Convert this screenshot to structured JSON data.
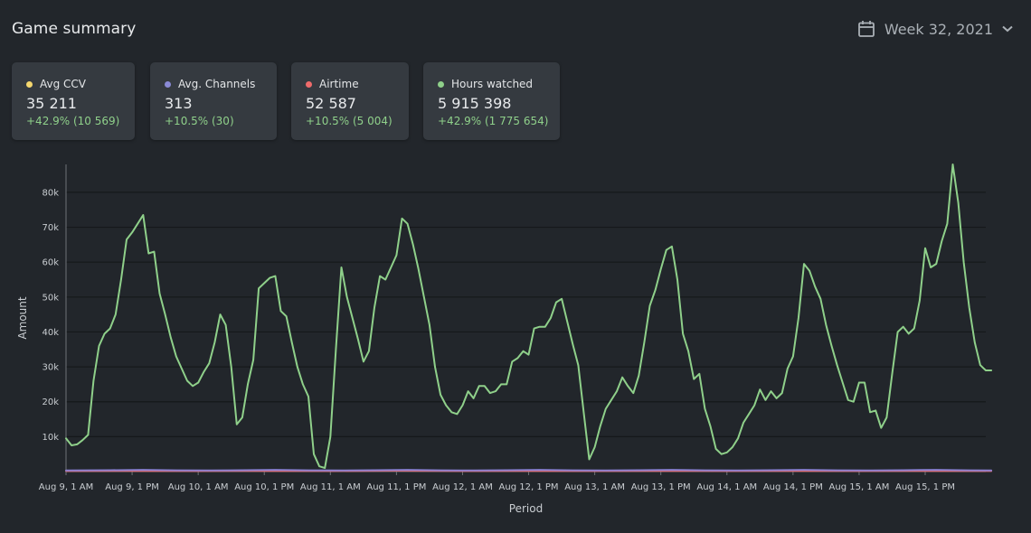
{
  "header": {
    "title": "Game summary",
    "week_label": "Week 32, 2021",
    "calendar_icon": "calendar-icon",
    "chevron_icon": "chevron-down-icon"
  },
  "cards": [
    {
      "label": "Avg CCV",
      "value": "35 211",
      "change": "+42.9% (10 569)",
      "color": "#f5d76e"
    },
    {
      "label": "Avg. Channels",
      "value": "313",
      "change": "+10.5% (30)",
      "color": "#8a8ad6"
    },
    {
      "label": "Airtime",
      "value": "52 587",
      "change": "+10.5% (5 004)",
      "color": "#ef6b6b"
    },
    {
      "label": "Hours watched",
      "value": "5 915 398",
      "change": "+42.9% (1 775 654)",
      "color": "#8fd08a"
    }
  ],
  "chart_data": {
    "type": "line",
    "xlabel": "Period",
    "ylabel": "Amount",
    "ylim": [
      0,
      88000
    ],
    "yticks": [
      "10k",
      "20k",
      "30k",
      "40k",
      "50k",
      "60k",
      "70k",
      "80k"
    ],
    "ytick_values": [
      10000,
      20000,
      30000,
      40000,
      50000,
      60000,
      70000,
      80000
    ],
    "xticks": [
      "Aug 9, 1 AM",
      "Aug 9, 1 PM",
      "Aug 10, 1 AM",
      "Aug 10, 1 PM",
      "Aug 11, 1 AM",
      "Aug 11, 1 PM",
      "Aug 12, 1 AM",
      "Aug 12, 1 PM",
      "Aug 13, 1 AM",
      "Aug 13, 1 PM",
      "Aug 14, 1 AM",
      "Aug 14, 1 PM",
      "Aug 15, 1 AM",
      "Aug 15, 1 PM"
    ],
    "xtick_hours": [
      0,
      12,
      24,
      36,
      48,
      60,
      72,
      84,
      96,
      108,
      120,
      132,
      144,
      156
    ],
    "xlim_hours": [
      0,
      167
    ],
    "grid": true,
    "series": [
      {
        "color": "#8fd08a",
        "points": [
          [
            0,
            9500
          ],
          [
            1,
            7500
          ],
          [
            2,
            7800
          ],
          [
            3,
            9000
          ],
          [
            4,
            10500
          ],
          [
            5,
            26000
          ],
          [
            6,
            36000
          ],
          [
            7,
            39500
          ],
          [
            8,
            41000
          ],
          [
            9,
            45000
          ],
          [
            10,
            55000
          ],
          [
            11,
            66500
          ],
          [
            12,
            68500
          ],
          [
            13,
            71000
          ],
          [
            14,
            73500
          ],
          [
            15,
            62500
          ],
          [
            16,
            63000
          ],
          [
            17,
            51000
          ],
          [
            18,
            45000
          ],
          [
            19,
            38500
          ],
          [
            20,
            33000
          ],
          [
            21,
            29500
          ],
          [
            22,
            26000
          ],
          [
            23,
            24500
          ],
          [
            24,
            25500
          ],
          [
            25,
            28500
          ],
          [
            26,
            31000
          ],
          [
            27,
            37000
          ],
          [
            28,
            45000
          ],
          [
            29,
            42000
          ],
          [
            30,
            30000
          ],
          [
            31,
            13500
          ],
          [
            32,
            15500
          ],
          [
            33,
            25000
          ],
          [
            34,
            32000
          ],
          [
            35,
            52500
          ],
          [
            36,
            54000
          ],
          [
            37,
            55500
          ],
          [
            38,
            56000
          ],
          [
            39,
            46000
          ],
          [
            40,
            44500
          ],
          [
            41,
            37000
          ],
          [
            42,
            30000
          ],
          [
            43,
            25000
          ],
          [
            44,
            21500
          ],
          [
            45,
            5000
          ],
          [
            46,
            1500
          ],
          [
            47,
            1000
          ],
          [
            48,
            10000
          ],
          [
            49,
            35000
          ],
          [
            50,
            58500
          ],
          [
            51,
            50000
          ],
          [
            52,
            44000
          ],
          [
            53,
            38000
          ],
          [
            54,
            31500
          ],
          [
            55,
            34500
          ],
          [
            56,
            47000
          ],
          [
            57,
            56000
          ],
          [
            58,
            55000
          ],
          [
            59,
            58500
          ],
          [
            60,
            62000
          ],
          [
            61,
            72500
          ],
          [
            62,
            71000
          ],
          [
            63,
            65000
          ],
          [
            64,
            58000
          ],
          [
            65,
            50000
          ],
          [
            66,
            42000
          ],
          [
            67,
            30000
          ],
          [
            68,
            22000
          ],
          [
            69,
            19000
          ],
          [
            70,
            17000
          ],
          [
            71,
            16500
          ],
          [
            72,
            19000
          ],
          [
            73,
            23000
          ],
          [
            74,
            21000
          ],
          [
            75,
            24500
          ],
          [
            76,
            24500
          ],
          [
            77,
            22500
          ],
          [
            78,
            23000
          ],
          [
            79,
            25000
          ],
          [
            80,
            25000
          ],
          [
            81,
            31500
          ],
          [
            82,
            32500
          ],
          [
            83,
            34500
          ],
          [
            84,
            33500
          ],
          [
            85,
            41000
          ],
          [
            86,
            41500
          ],
          [
            87,
            41500
          ],
          [
            88,
            44000
          ],
          [
            89,
            48500
          ],
          [
            90,
            49500
          ],
          [
            91,
            43000
          ],
          [
            92,
            36500
          ],
          [
            93,
            30500
          ],
          [
            94,
            17000
          ],
          [
            95,
            3500
          ],
          [
            96,
            7000
          ],
          [
            97,
            13000
          ],
          [
            98,
            18000
          ],
          [
            99,
            20500
          ],
          [
            100,
            23000
          ],
          [
            101,
            27000
          ],
          [
            102,
            24500
          ],
          [
            103,
            22500
          ],
          [
            104,
            27500
          ],
          [
            105,
            37000
          ],
          [
            106,
            47500
          ],
          [
            107,
            52000
          ],
          [
            108,
            58000
          ],
          [
            109,
            63500
          ],
          [
            110,
            64500
          ],
          [
            111,
            55000
          ],
          [
            112,
            39500
          ],
          [
            113,
            34500
          ],
          [
            114,
            26500
          ],
          [
            115,
            28000
          ],
          [
            116,
            18000
          ],
          [
            117,
            13000
          ],
          [
            118,
            6500
          ],
          [
            119,
            5000
          ],
          [
            120,
            5500
          ],
          [
            121,
            7000
          ],
          [
            122,
            9500
          ],
          [
            123,
            14000
          ],
          [
            124,
            16500
          ],
          [
            125,
            19000
          ],
          [
            126,
            23500
          ],
          [
            127,
            20500
          ],
          [
            128,
            23000
          ],
          [
            129,
            21000
          ],
          [
            130,
            22500
          ],
          [
            131,
            29500
          ],
          [
            132,
            33000
          ],
          [
            133,
            44000
          ],
          [
            134,
            59500
          ],
          [
            135,
            57500
          ],
          [
            136,
            53000
          ],
          [
            137,
            49500
          ],
          [
            138,
            42000
          ],
          [
            139,
            36000
          ],
          [
            140,
            30500
          ],
          [
            141,
            25500
          ],
          [
            142,
            20500
          ],
          [
            143,
            20000
          ],
          [
            144,
            25500
          ],
          [
            145,
            25500
          ],
          [
            146,
            17000
          ],
          [
            147,
            17500
          ],
          [
            148,
            12500
          ],
          [
            149,
            15500
          ],
          [
            150,
            28000
          ],
          [
            151,
            40000
          ],
          [
            152,
            41500
          ],
          [
            153,
            39500
          ],
          [
            154,
            41000
          ],
          [
            155,
            49000
          ],
          [
            156,
            64000
          ],
          [
            157,
            58500
          ],
          [
            158,
            59500
          ],
          [
            159,
            66000
          ],
          [
            160,
            71000
          ],
          [
            161,
            88000
          ],
          [
            162,
            77000
          ],
          [
            163,
            60000
          ],
          [
            164,
            47000
          ],
          [
            165,
            37000
          ],
          [
            166,
            30500
          ],
          [
            167,
            29000
          ],
          [
            168,
            29000
          ]
        ]
      },
      {
        "color": "#8a7fd0",
        "points": [
          [
            0,
            300
          ],
          [
            8,
            400
          ],
          [
            14,
            500
          ],
          [
            20,
            350
          ],
          [
            26,
            300
          ],
          [
            32,
            400
          ],
          [
            38,
            500
          ],
          [
            44,
            350
          ],
          [
            50,
            300
          ],
          [
            56,
            400
          ],
          [
            62,
            500
          ],
          [
            68,
            350
          ],
          [
            74,
            300
          ],
          [
            80,
            400
          ],
          [
            86,
            500
          ],
          [
            92,
            350
          ],
          [
            98,
            300
          ],
          [
            104,
            400
          ],
          [
            110,
            500
          ],
          [
            116,
            350
          ],
          [
            122,
            300
          ],
          [
            128,
            400
          ],
          [
            134,
            500
          ],
          [
            140,
            350
          ],
          [
            146,
            300
          ],
          [
            152,
            400
          ],
          [
            158,
            500
          ],
          [
            164,
            350
          ],
          [
            168,
            300
          ]
        ]
      },
      {
        "color": "#ef6b6b",
        "points": [
          [
            0,
            150
          ],
          [
            12,
            200
          ],
          [
            24,
            150
          ],
          [
            36,
            200
          ],
          [
            48,
            150
          ],
          [
            60,
            250
          ],
          [
            72,
            150
          ],
          [
            84,
            200
          ],
          [
            96,
            150
          ],
          [
            108,
            200
          ],
          [
            120,
            150
          ],
          [
            132,
            200
          ],
          [
            144,
            150
          ],
          [
            156,
            200
          ],
          [
            168,
            150
          ]
        ]
      }
    ]
  }
}
